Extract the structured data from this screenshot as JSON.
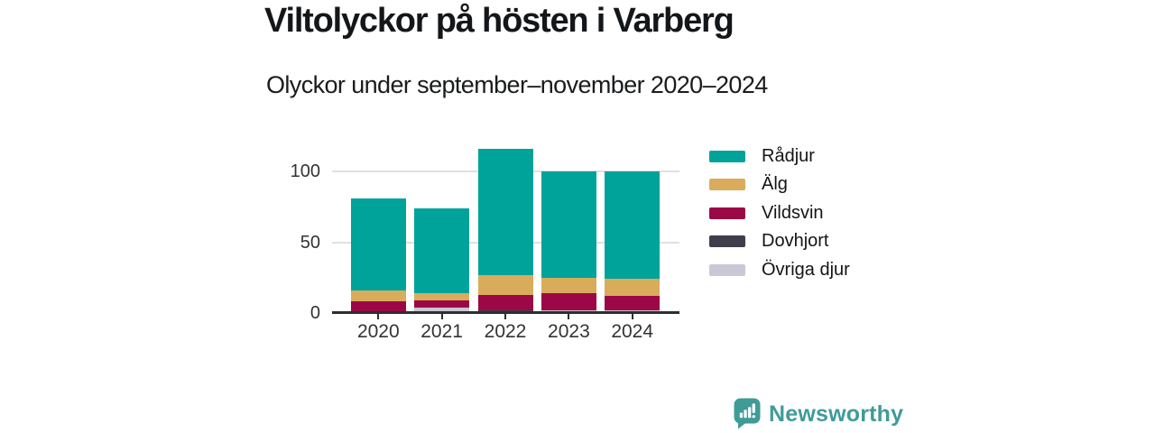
{
  "header": {
    "title": "Viltolyckor på hösten i Varberg",
    "subtitle": "Olyckor under september–november 2020–2024"
  },
  "chart_data": {
    "type": "bar",
    "stacked": true,
    "title": "Viltolyckor på hösten i Varberg",
    "subtitle": "Olyckor under september–november 2020–2024",
    "categories": [
      "2020",
      "2021",
      "2022",
      "2023",
      "2024"
    ],
    "series": [
      {
        "name": "Rådjur",
        "color": "#00a39a",
        "values": [
          65,
          60,
          89,
          75,
          76
        ]
      },
      {
        "name": "Älg",
        "color": "#d9ac5c",
        "values": [
          8,
          5,
          14,
          11,
          12
        ]
      },
      {
        "name": "Vildsvin",
        "color": "#9b0845",
        "values": [
          8,
          5,
          11,
          12,
          10
        ]
      },
      {
        "name": "Dovhjort",
        "color": "#413e4c",
        "values": [
          0,
          0,
          2,
          0,
          0
        ]
      },
      {
        "name": "Övriga djur",
        "color": "#c9c8d4",
        "values": [
          0,
          4,
          0,
          2,
          2
        ]
      }
    ],
    "totals": [
      81,
      74,
      116,
      100,
      100
    ],
    "stack_order_bottom_to_top": [
      "Övriga djur",
      "Dovhjort",
      "Vildsvin",
      "Älg",
      "Rådjur"
    ],
    "y_ticks": [
      0,
      50,
      100
    ],
    "ylim": [
      0,
      116
    ],
    "xlabel": "",
    "ylabel": "",
    "grid": "horizontal",
    "legend_position": "right"
  },
  "colors": {
    "axis_line": "#2e2e2e",
    "axis_text": "#333333",
    "gridline": "#e0e0e0",
    "background": "#ffffff"
  },
  "brand": {
    "name": "Newsworthy",
    "color": "#3f9b98"
  }
}
